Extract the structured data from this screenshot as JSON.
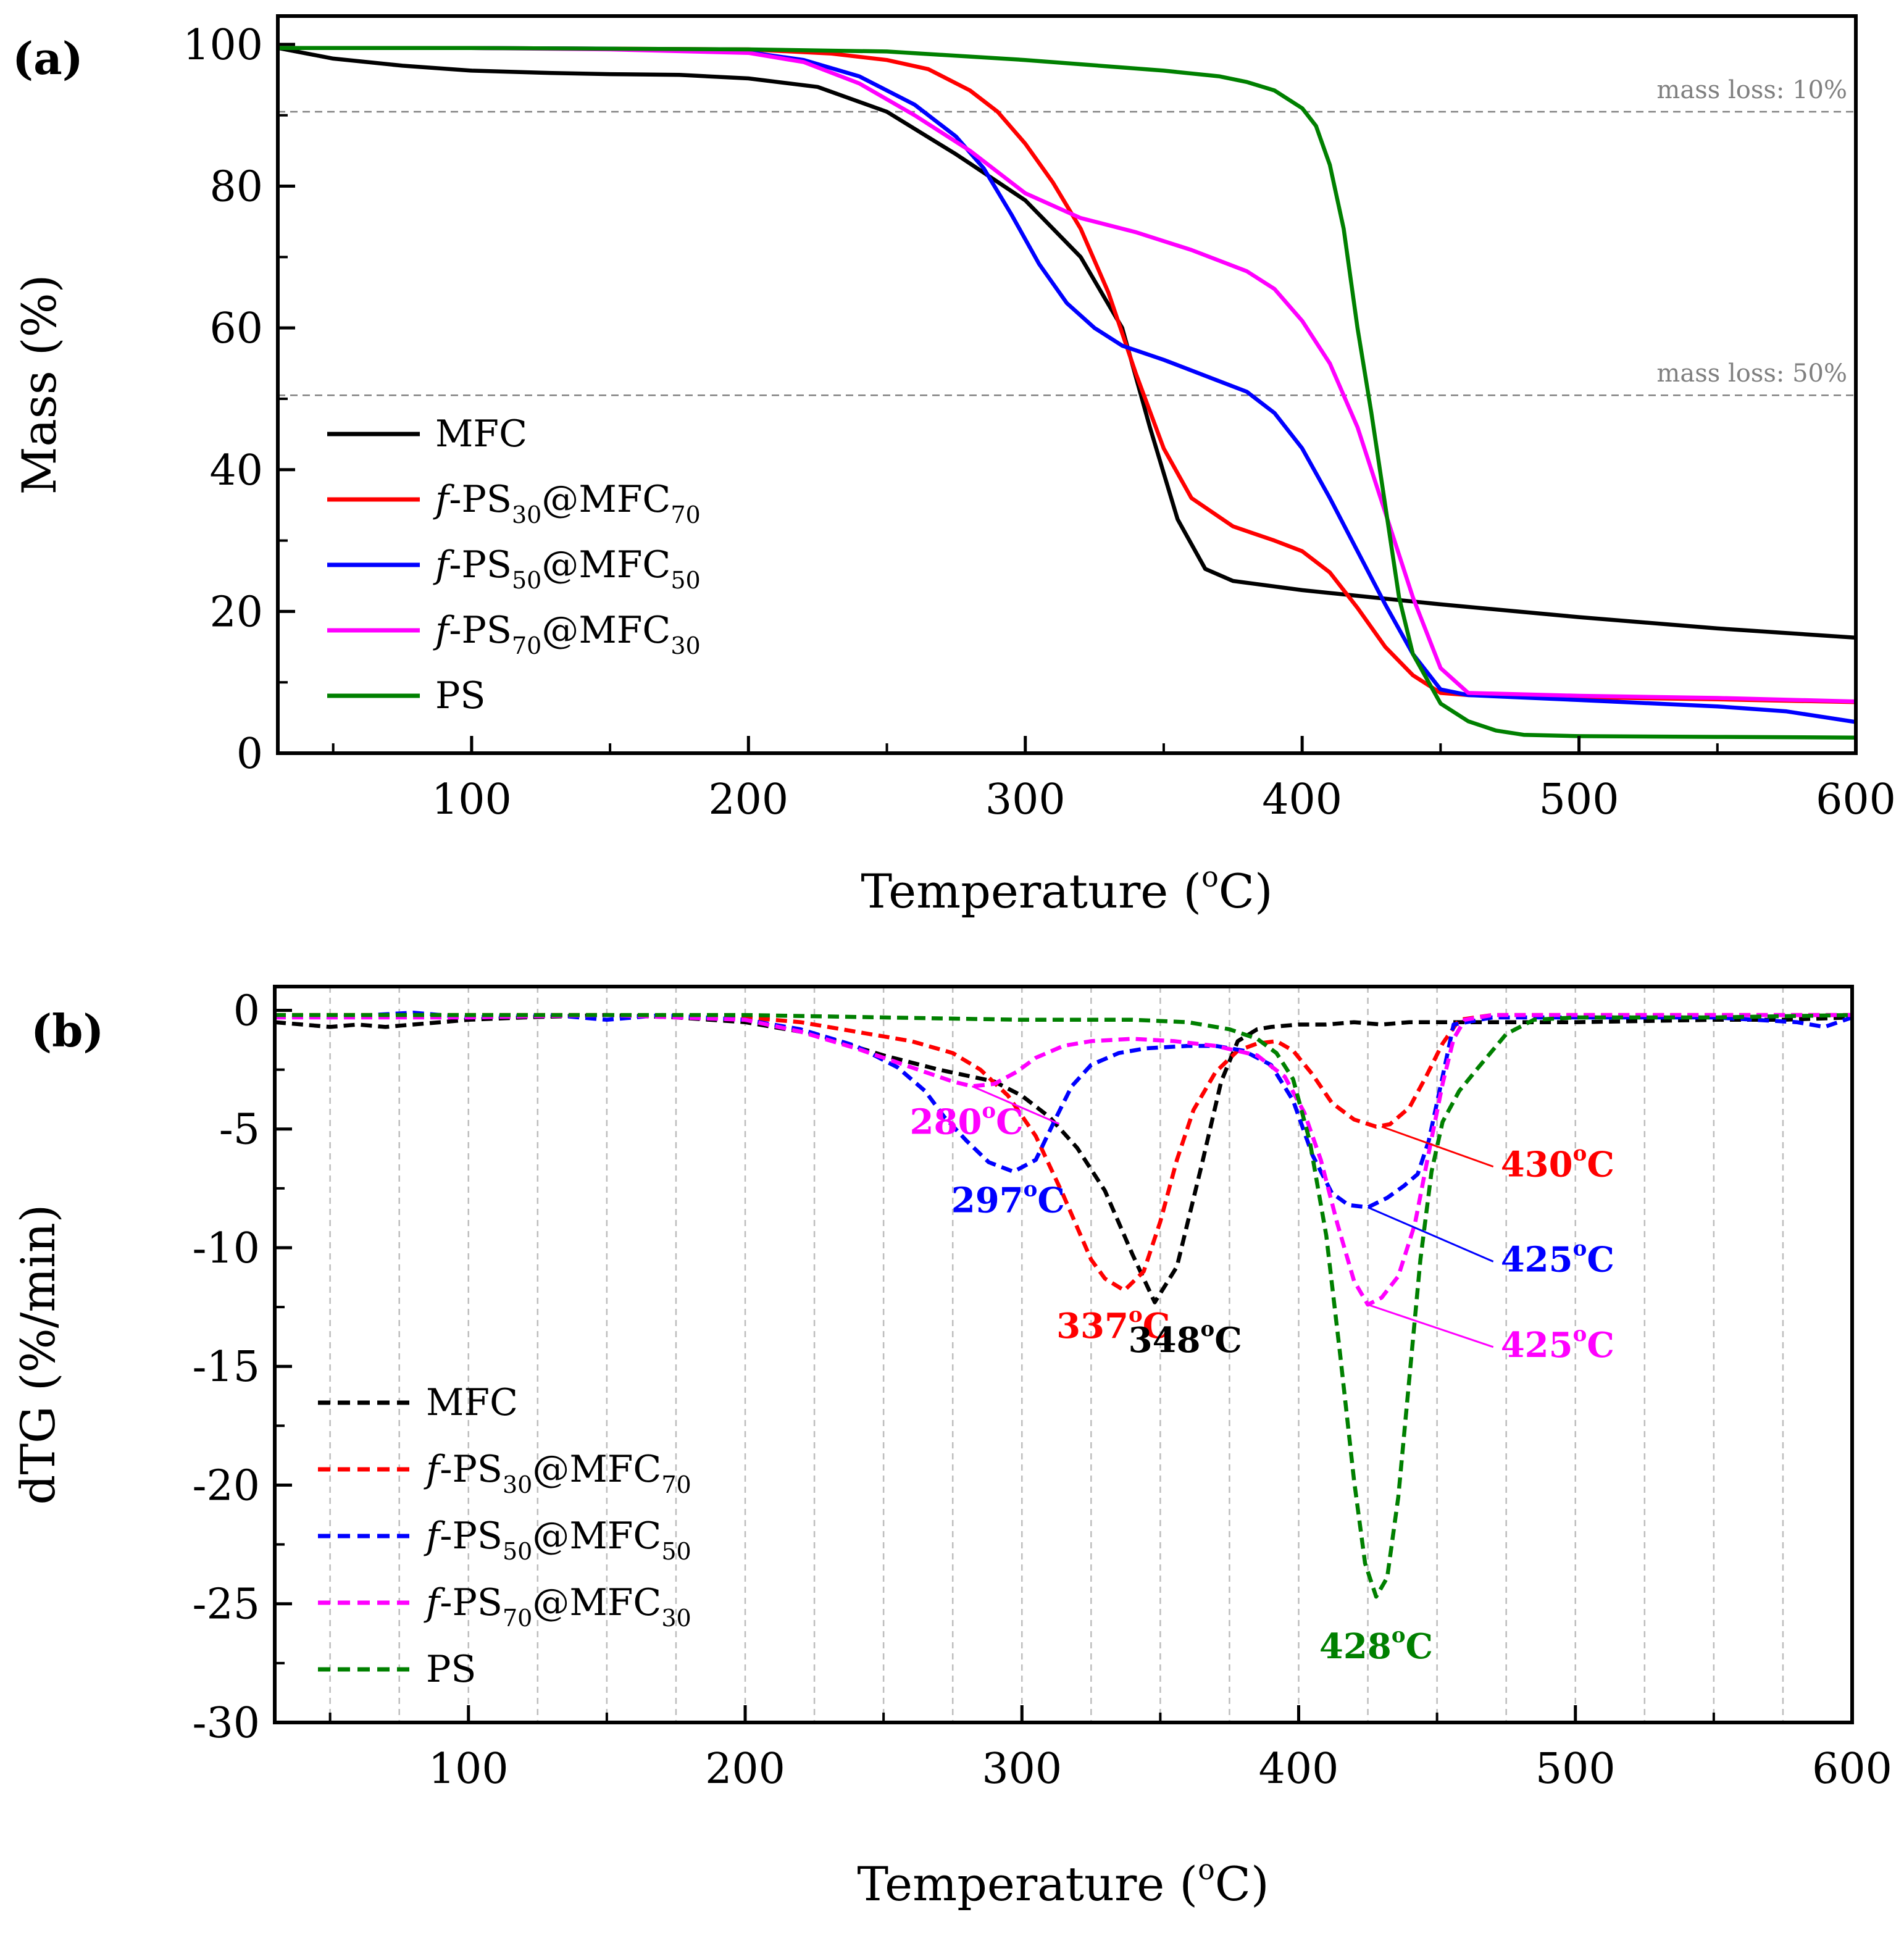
{
  "colors": {
    "MFC": "#000000",
    "PS30": "#ff0000",
    "PS50": "#0000ff",
    "PS70": "#ff00ff",
    "PS": "#008000",
    "reference_line": "#808080",
    "grid": "#bdbdbd"
  },
  "chart_data": [
    {
      "panel": "(a)",
      "type": "line",
      "xlabel": "Temperature (",
      "xlabel_degree": "o",
      "xlabel_tail": "C)",
      "ylabel": "Mass (%)",
      "xlim": [
        30,
        600
      ],
      "ylim": [
        0,
        104
      ],
      "xticks": [
        100,
        200,
        300,
        400,
        500,
        600
      ],
      "yticks": [
        0,
        20,
        40,
        60,
        80,
        100
      ],
      "reference_lines": [
        {
          "y": 90.5,
          "label": "mass loss: 10%"
        },
        {
          "y": 50.5,
          "label": "mass loss: 50%"
        }
      ],
      "legend": [
        {
          "key": "MFC",
          "prefix": "",
          "base": "MFC",
          "sub1": "",
          "mid": "",
          "sub2": ""
        },
        {
          "key": "PS30",
          "prefix": "f",
          "base": "-PS",
          "sub1": "30",
          "mid": "@MFC",
          "sub2": "70"
        },
        {
          "key": "PS50",
          "prefix": "f",
          "base": "-PS",
          "sub1": "50",
          "mid": "@MFC",
          "sub2": "50"
        },
        {
          "key": "PS70",
          "prefix": "f",
          "base": "-PS",
          "sub1": "70",
          "mid": "@MFC",
          "sub2": "30"
        },
        {
          "key": "PS",
          "prefix": "",
          "base": "PS",
          "sub1": "",
          "mid": "",
          "sub2": ""
        }
      ],
      "series": [
        {
          "key": "MFC",
          "name": "MFC",
          "style": "solid",
          "x": [
            30,
            50,
            75,
            100,
            125,
            150,
            175,
            200,
            225,
            250,
            275,
            300,
            320,
            335,
            345,
            355,
            365,
            375,
            400,
            450,
            500,
            550,
            600
          ],
          "y": [
            99.5,
            98,
            97,
            96.3,
            96,
            95.8,
            95.7,
            95.2,
            94,
            90.5,
            84.5,
            78,
            70,
            60,
            46,
            33,
            26,
            24.3,
            23,
            21,
            19.2,
            17.6,
            16.3
          ]
        },
        {
          "key": "PS30",
          "name": "f-PS30@MFC70",
          "style": "solid",
          "x": [
            30,
            100,
            200,
            230,
            250,
            265,
            280,
            290,
            300,
            310,
            320,
            330,
            340,
            350,
            360,
            375,
            390,
            400,
            410,
            420,
            430,
            440,
            450,
            460,
            500,
            550,
            600
          ],
          "y": [
            99.5,
            99.5,
            99.3,
            98.7,
            97.8,
            96.5,
            93.5,
            90.5,
            86,
            80.5,
            74,
            65,
            53.5,
            43,
            36,
            32,
            30,
            28.5,
            25.5,
            20.5,
            15,
            11,
            8.5,
            8.2,
            7.9,
            7.6,
            7.2
          ]
        },
        {
          "key": "PS50",
          "name": "f-PS50@MFC50",
          "style": "solid",
          "x": [
            30,
            100,
            150,
            200,
            220,
            240,
            260,
            275,
            285,
            295,
            305,
            315,
            325,
            335,
            350,
            370,
            380,
            390,
            400,
            410,
            420,
            430,
            440,
            450,
            460,
            500,
            550,
            575,
            600
          ],
          "y": [
            99.5,
            99.5,
            99.4,
            98.9,
            97.8,
            95.5,
            91.5,
            87,
            82.5,
            76,
            69,
            63.5,
            60,
            57.5,
            55.5,
            52.5,
            51,
            48,
            43,
            36,
            28.5,
            21,
            14,
            9,
            8.2,
            7.5,
            6.6,
            5.9,
            4.4
          ]
        },
        {
          "key": "PS70",
          "name": "f-PS70@MFC30",
          "style": "solid",
          "x": [
            30,
            100,
            150,
            200,
            220,
            240,
            260,
            280,
            300,
            320,
            340,
            360,
            380,
            390,
            400,
            410,
            420,
            430,
            440,
            450,
            460,
            500,
            550,
            600
          ],
          "y": [
            99.5,
            99.5,
            99.3,
            98.8,
            97.5,
            94.5,
            90,
            85,
            79,
            75.5,
            73.5,
            71,
            68,
            65.5,
            61,
            55,
            46,
            34,
            22,
            12,
            8.5,
            8.1,
            7.8,
            7.3
          ]
        },
        {
          "key": "PS",
          "name": "PS",
          "style": "solid",
          "x": [
            30,
            100,
            200,
            250,
            300,
            350,
            370,
            380,
            390,
            400,
            405,
            410,
            415,
            420,
            425,
            430,
            435,
            440,
            450,
            460,
            470,
            480,
            500,
            550,
            600
          ],
          "y": [
            99.5,
            99.5,
            99.3,
            99,
            97.8,
            96.3,
            95.5,
            94.7,
            93.5,
            91,
            88.5,
            83,
            74,
            60,
            48,
            35,
            22,
            14,
            7,
            4.5,
            3.2,
            2.6,
            2.4,
            2.3,
            2.2
          ]
        }
      ]
    },
    {
      "panel": "(b)",
      "type": "line",
      "xlabel": "Temperature (",
      "xlabel_degree": "o",
      "xlabel_tail": "C)",
      "ylabel": "dTG (%/min)",
      "xlim": [
        30,
        600
      ],
      "ylim": [
        -30,
        1
      ],
      "xticks": [
        100,
        200,
        300,
        400,
        500,
        600
      ],
      "yticks": [
        0,
        -5,
        -10,
        -15,
        -20,
        -25,
        -30
      ],
      "grid_x": [
        50,
        75,
        100,
        125,
        150,
        175,
        200,
        225,
        250,
        275,
        300,
        325,
        350,
        375,
        400,
        425,
        450,
        475,
        500,
        525,
        550,
        575
      ],
      "legend": [
        {
          "key": "MFC",
          "prefix": "",
          "base": "MFC",
          "sub1": "",
          "mid": "",
          "sub2": ""
        },
        {
          "key": "PS30",
          "prefix": "f",
          "base": "-PS",
          "sub1": "30",
          "mid": "@MFC",
          "sub2": "70"
        },
        {
          "key": "PS50",
          "prefix": "f",
          "base": "-PS",
          "sub1": "50",
          "mid": "@MFC",
          "sub2": "50"
        },
        {
          "key": "PS70",
          "prefix": "f",
          "base": "-PS",
          "sub1": "70",
          "mid": "@MFC",
          "sub2": "30"
        },
        {
          "key": "PS",
          "prefix": "",
          "base": "PS",
          "sub1": "",
          "mid": "",
          "sub2": ""
        }
      ],
      "annotations": [
        {
          "key": "PS70",
          "text": "280",
          "deg": "o",
          "unit": "C",
          "at": [
            282,
            -3.2
          ],
          "pos": [
            280,
            -5.2
          ],
          "leader": true
        },
        {
          "key": "PS50",
          "text": "297",
          "deg": "o",
          "unit": "C",
          "at": [
            297,
            -6.8
          ],
          "pos": [
            295,
            -8.5
          ],
          "leader": false
        },
        {
          "key": "PS30",
          "text": "337",
          "deg": "o",
          "unit": "C",
          "at": [
            337,
            -11.8
          ],
          "pos": [
            333,
            -13.8
          ],
          "leader": false
        },
        {
          "key": "MFC",
          "text": "348",
          "deg": "o",
          "unit": "C",
          "at": [
            348,
            -12.3
          ],
          "pos": [
            359,
            -14.4
          ],
          "leader": false
        },
        {
          "key": "PS30",
          "text": "430",
          "deg": "o",
          "unit": "C",
          "at": [
            430,
            -4.9
          ],
          "pos": [
            473,
            -7.0
          ],
          "leader": true
        },
        {
          "key": "PS50",
          "text": "425",
          "deg": "o",
          "unit": "C",
          "at": [
            425,
            -8.3
          ],
          "pos": [
            473,
            -11.0
          ],
          "leader": true
        },
        {
          "key": "PS70",
          "text": "425",
          "deg": "o",
          "unit": "C",
          "at": [
            425,
            -12.4
          ],
          "pos": [
            473,
            -14.6
          ],
          "leader": true
        },
        {
          "key": "PS",
          "text": "428",
          "deg": "o",
          "unit": "C",
          "at": [
            428,
            -24.7
          ],
          "pos": [
            428,
            -27.3
          ],
          "leader": false
        }
      ],
      "series": [
        {
          "key": "MFC",
          "name": "MFC",
          "style": "dashed",
          "x": [
            30,
            40,
            50,
            60,
            70,
            80,
            90,
            100,
            120,
            150,
            175,
            200,
            225,
            250,
            270,
            290,
            300,
            310,
            320,
            330,
            340,
            348,
            356,
            365,
            372,
            378,
            385,
            390,
            400,
            410,
            420,
            430,
            440,
            460,
            500,
            550,
            575,
            600
          ],
          "y": [
            -0.5,
            -0.6,
            -0.7,
            -0.6,
            -0.7,
            -0.6,
            -0.5,
            -0.4,
            -0.3,
            -0.2,
            -0.3,
            -0.5,
            -1.0,
            -1.9,
            -2.5,
            -3.0,
            -3.6,
            -4.5,
            -5.8,
            -7.6,
            -10.3,
            -12.3,
            -10.8,
            -6.5,
            -3.0,
            -1.3,
            -0.8,
            -0.7,
            -0.6,
            -0.6,
            -0.5,
            -0.6,
            -0.5,
            -0.5,
            -0.5,
            -0.4,
            -0.4,
            -0.3
          ]
        },
        {
          "key": "PS30",
          "name": "f-PS30@MFC70",
          "style": "dashed",
          "x": [
            30,
            100,
            150,
            200,
            220,
            240,
            260,
            275,
            285,
            295,
            305,
            315,
            325,
            330,
            337,
            344,
            350,
            356,
            362,
            370,
            378,
            385,
            392,
            398,
            405,
            412,
            420,
            428,
            433,
            440,
            446,
            452,
            458,
            470,
            500,
            550,
            600
          ],
          "y": [
            -0.2,
            -0.2,
            -0.2,
            -0.3,
            -0.5,
            -0.9,
            -1.3,
            -1.8,
            -2.5,
            -3.6,
            -5.3,
            -7.8,
            -10.5,
            -11.3,
            -11.8,
            -11.0,
            -8.9,
            -6.3,
            -4.2,
            -2.6,
            -1.7,
            -1.4,
            -1.3,
            -1.7,
            -2.7,
            -3.9,
            -4.6,
            -4.9,
            -4.8,
            -4.1,
            -2.8,
            -1.4,
            -0.4,
            -0.2,
            -0.2,
            -0.2,
            -0.2
          ]
        },
        {
          "key": "PS50",
          "name": "f-PS50@MFC50",
          "style": "dashed",
          "x": [
            30,
            50,
            80,
            100,
            130,
            150,
            170,
            200,
            220,
            240,
            255,
            265,
            272,
            280,
            288,
            297,
            305,
            312,
            318,
            325,
            335,
            345,
            360,
            370,
            380,
            390,
            398,
            405,
            412,
            418,
            425,
            432,
            438,
            443,
            447,
            452,
            456,
            470,
            500,
            550,
            580,
            590,
            600
          ],
          "y": [
            -0.2,
            -0.3,
            -0.1,
            -0.3,
            -0.2,
            -0.4,
            -0.2,
            -0.4,
            -0.8,
            -1.5,
            -2.4,
            -3.4,
            -4.5,
            -5.5,
            -6.4,
            -6.8,
            -6.3,
            -4.6,
            -3.2,
            -2.3,
            -1.8,
            -1.6,
            -1.5,
            -1.5,
            -1.7,
            -2.3,
            -3.8,
            -6.1,
            -7.7,
            -8.2,
            -8.3,
            -7.9,
            -7.4,
            -6.9,
            -5.5,
            -2.8,
            -0.6,
            -0.3,
            -0.3,
            -0.3,
            -0.5,
            -0.7,
            -0.3
          ]
        },
        {
          "key": "PS70",
          "name": "f-PS70@MFC30",
          "style": "dashed",
          "x": [
            30,
            100,
            150,
            200,
            220,
            240,
            255,
            265,
            275,
            282,
            290,
            298,
            305,
            315,
            325,
            340,
            355,
            370,
            385,
            395,
            402,
            408,
            414,
            420,
            425,
            430,
            436,
            442,
            447,
            452,
            456,
            460,
            470,
            500,
            550,
            600
          ],
          "y": [
            -0.3,
            -0.3,
            -0.2,
            -0.4,
            -0.9,
            -1.6,
            -2.2,
            -2.6,
            -3.0,
            -3.2,
            -3.1,
            -2.6,
            -2.0,
            -1.5,
            -1.3,
            -1.2,
            -1.3,
            -1.5,
            -1.9,
            -2.8,
            -4.3,
            -6.3,
            -9.0,
            -11.4,
            -12.4,
            -12.1,
            -11.2,
            -9.0,
            -6.0,
            -3.1,
            -1.2,
            -0.4,
            -0.2,
            -0.2,
            -0.2,
            -0.2
          ]
        },
        {
          "key": "PS",
          "name": "PS",
          "style": "dashed",
          "x": [
            30,
            100,
            150,
            200,
            250,
            300,
            340,
            360,
            375,
            385,
            392,
            398,
            404,
            410,
            415,
            420,
            424,
            428,
            432,
            436,
            440,
            444,
            448,
            452,
            458,
            465,
            475,
            485,
            500,
            550,
            600
          ],
          "y": [
            -0.2,
            -0.2,
            -0.2,
            -0.2,
            -0.3,
            -0.4,
            -0.4,
            -0.5,
            -0.8,
            -1.2,
            -1.8,
            -2.9,
            -5.5,
            -9.5,
            -14.5,
            -19.8,
            -23.3,
            -24.7,
            -23.9,
            -20.5,
            -15.5,
            -10.5,
            -6.8,
            -4.7,
            -3.4,
            -2.4,
            -1.0,
            -0.4,
            -0.3,
            -0.3,
            -0.2
          ]
        }
      ]
    }
  ]
}
